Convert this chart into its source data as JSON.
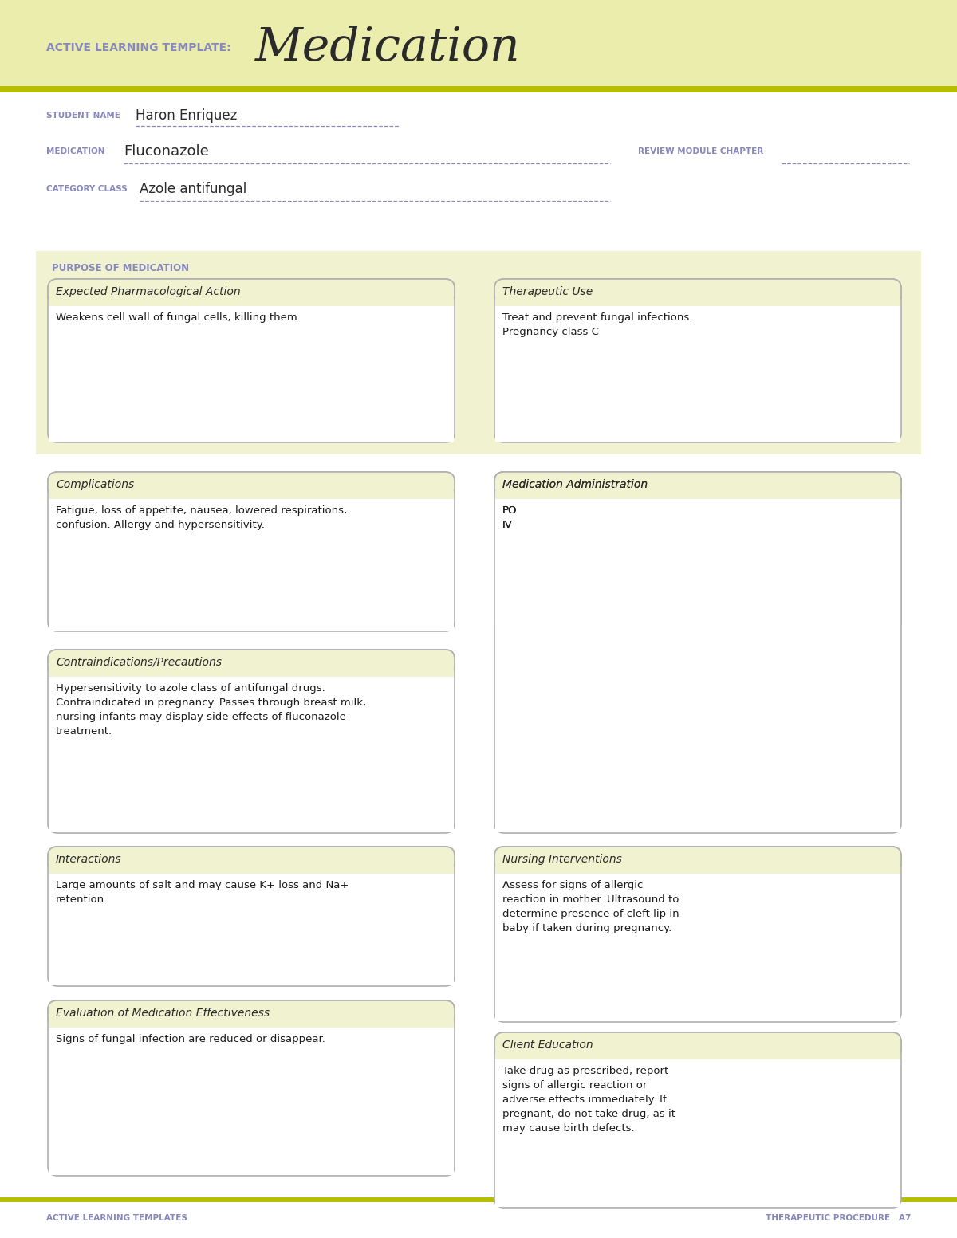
{
  "page_bg": "#ffffff",
  "header_bg": "#eaedac",
  "header_stripe_color": "#b5bf00",
  "box_bg": "#f0f2d0",
  "box_border": "#b0b0b0",
  "label_color": "#8888bb",
  "title_color": "#2a2a2a",
  "text_color": "#1a1a1a",
  "header_label": "ACTIVE LEARNING TEMPLATE:",
  "header_title": "Medication",
  "student_name_label": "STUDENT NAME",
  "student_name_value": "Haron Enriquez",
  "medication_label": "MEDICATION",
  "medication_value": "Fluconazole",
  "review_module_label": "REVIEW MODULE CHAPTER",
  "category_label": "CATEGORY CLASS",
  "category_value": "Azole antifungal",
  "purpose_label": "PURPOSE OF MEDICATION",
  "box1_title": "Expected Pharmacological Action",
  "box1_content": "Weakens cell wall of fungal cells, killing them.",
  "box2_title": "Therapeutic Use",
  "box2_content": "Treat and prevent fungal infections.\nPregnancy class C",
  "box3_title": "Complications",
  "box3_content": "Fatigue, loss of appetite, nausea, lowered respirations,\nconfusion. Allergy and hypersensitivity.",
  "box4_title": "Medication Administration",
  "box4_content": "PO\nIV",
  "box5_title": "Contraindications/Precautions",
  "box5_content": "Hypersensitivity to azole class of antifungal drugs.\nContraindicated in pregnancy. Passes through breast milk,\nnursing infants may display side effects of fluconazole\ntreatment.",
  "box6_title": "Nursing Interventions",
  "box6_content": "Assess for signs of allergic\nreaction in mother. Ultrasound to\ndetermine presence of cleft lip in\nbaby if taken during pregnancy.",
  "box7_title": "Interactions",
  "box7_content": "Large amounts of salt and may cause K+ loss and Na+\nretention.",
  "box8_title": "Client Education",
  "box8_content": "Take drug as prescribed, report\nsigns of allergic reaction or\nadverse effects immediately. If\npregnant, do not take drug, as it\nmay cause birth defects.",
  "box9_title": "Evaluation of Medication Effectiveness",
  "box9_content": "Signs of fungal infection are reduced or disappear.",
  "footer_left": "ACTIVE LEARNING TEMPLATES",
  "footer_right": "THERAPEUTIC PROCEDURE   A7"
}
